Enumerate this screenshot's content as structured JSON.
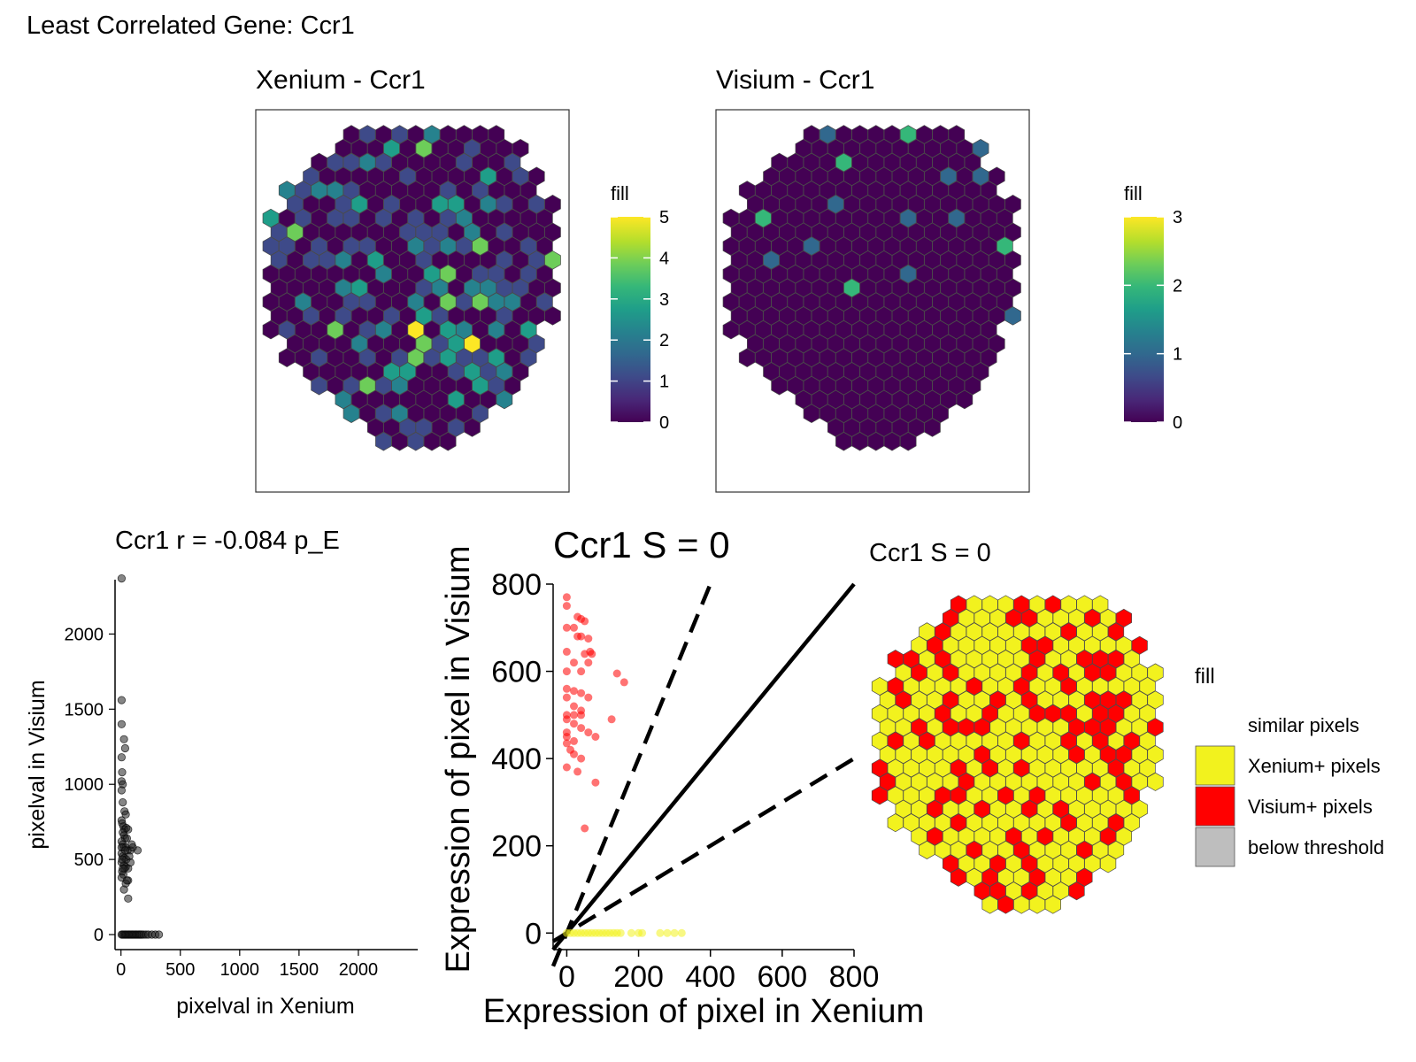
{
  "figure_title": "Least Correlated Gene: Ccr1",
  "colors": {
    "viridis": [
      "#440154",
      "#482878",
      "#3E4A89",
      "#31688E",
      "#26828E",
      "#1F9E89",
      "#35B779",
      "#6DCD59",
      "#B4DE2C",
      "#FDE725"
    ],
    "hex_stroke": "#4a4a4a",
    "scatter_point": "#222222",
    "visium_plus": "#FF0000",
    "xenium_plus": "#F2F21E",
    "below_threshold": "#BEBEBE",
    "line": "#000000"
  },
  "chart_data": [
    {
      "id": "xenium_map",
      "type": "heatmap",
      "title": "Xenium - Ccr1",
      "legend": {
        "title": "fill",
        "min": 0,
        "max": 5,
        "ticks": [
          "0",
          "1",
          "2",
          "3",
          "4",
          "5"
        ]
      },
      "hex_values": "0101020000000304001000011210000100110000010000301021221000001010001001301003302101030101101010120000014000000111020100011010110021214001010112030010000101400000002003401101000002300012022110000200110020414220100101001031000100001004012050320203000020004135000100100101413113010000033001312010141200003102000000300220120000100110101010011001000000100000001000000100000000000"
    },
    {
      "id": "visium_map",
      "type": "heatmap",
      "title": "Visium - Ccr1",
      "legend": {
        "title": "fill",
        "min": 0,
        "max": 3,
        "ticks": [
          "0",
          "1",
          "2",
          "3"
        ]
      },
      "hex_values": "0100002000000000000001000020000000000000000000101000000000000000000000010000000000000200000000100100000000000000000000000000100000000000200100000000000000000000000000100000000000002000000000000000000000000000000000000000000000100000000000000000000000000000000000000000000000000000000000000000000000000000000000000000000000000000000000000000000000000000000000000000000000"
    },
    {
      "id": "correlation_scatter",
      "type": "scatter",
      "title": "Ccr1  r =  -0.084  p_E",
      "xlabel": "pixelval in Xenium",
      "ylabel": "pixelval in Visium",
      "xlim": [
        -50,
        2500
      ],
      "ylim": [
        -100,
        2450
      ],
      "xticks": [
        0,
        500,
        1000,
        1500,
        2000
      ],
      "yticks": [
        0,
        500,
        1000,
        1500,
        2000
      ],
      "points_visium_only": [
        [
          5,
          2370
        ],
        [
          5,
          1560
        ],
        [
          5,
          1400
        ],
        [
          25,
          1300
        ],
        [
          35,
          1240
        ],
        [
          5,
          1180
        ],
        [
          10,
          1080
        ],
        [
          5,
          1020
        ],
        [
          15,
          1000
        ],
        [
          5,
          960
        ],
        [
          15,
          880
        ],
        [
          30,
          820
        ],
        [
          40,
          800
        ],
        [
          5,
          760
        ],
        [
          10,
          740
        ],
        [
          20,
          720
        ],
        [
          30,
          700
        ],
        [
          45,
          710
        ],
        [
          60,
          700
        ],
        [
          15,
          680
        ],
        [
          25,
          660
        ],
        [
          35,
          640
        ],
        [
          50,
          640
        ],
        [
          5,
          620
        ],
        [
          15,
          600
        ],
        [
          20,
          580
        ],
        [
          40,
          580
        ],
        [
          55,
          560
        ],
        [
          80,
          560
        ],
        [
          100,
          580
        ],
        [
          140,
          560
        ],
        [
          5,
          540
        ],
        [
          15,
          520
        ],
        [
          30,
          510
        ],
        [
          45,
          500
        ],
        [
          5,
          480
        ],
        [
          25,
          460
        ],
        [
          40,
          450
        ],
        [
          60,
          440
        ],
        [
          10,
          420
        ],
        [
          20,
          400
        ],
        [
          5,
          380
        ],
        [
          60,
          360
        ],
        [
          40,
          340
        ],
        [
          25,
          300
        ],
        [
          60,
          240
        ],
        [
          5,
          580
        ],
        [
          10,
          500
        ],
        [
          90,
          600
        ],
        [
          70,
          520
        ],
        [
          30,
          440
        ],
        [
          50,
          360
        ],
        [
          80,
          480
        ],
        [
          15,
          440
        ],
        [
          35,
          560
        ]
      ],
      "points_xenium_only": [
        [
          5,
          0
        ],
        [
          15,
          0
        ],
        [
          25,
          0
        ],
        [
          35,
          0
        ],
        [
          45,
          0
        ],
        [
          55,
          0
        ],
        [
          65,
          0
        ],
        [
          75,
          0
        ],
        [
          85,
          0
        ],
        [
          95,
          0
        ],
        [
          105,
          0
        ],
        [
          115,
          0
        ],
        [
          125,
          0
        ],
        [
          135,
          0
        ],
        [
          145,
          0
        ],
        [
          155,
          0
        ],
        [
          165,
          0
        ],
        [
          175,
          0
        ],
        [
          190,
          0
        ],
        [
          210,
          0
        ],
        [
          230,
          0
        ],
        [
          260,
          0
        ],
        [
          290,
          0
        ],
        [
          320,
          0
        ]
      ]
    },
    {
      "id": "threshold_scatter",
      "type": "scatter",
      "title": "Ccr1  S =  0",
      "xlabel": "Expression of pixel in Xenium",
      "ylabel": "Expression of pixel in Visium",
      "xlim": [
        -38,
        800
      ],
      "ylim": [
        -38,
        800
      ],
      "xticks": [
        0,
        200,
        400,
        600,
        800
      ],
      "yticks": [
        0,
        200,
        400,
        600,
        800
      ],
      "reference_lines": [
        {
          "style": "solid",
          "slope": 1
        },
        {
          "style": "dashed",
          "slope": 2
        },
        {
          "style": "dashed",
          "slope": 0.5
        }
      ],
      "points_visium_plus": [
        [
          0,
          770
        ],
        [
          0,
          750
        ],
        [
          30,
          725
        ],
        [
          40,
          720
        ],
        [
          50,
          715
        ],
        [
          0,
          700
        ],
        [
          20,
          700
        ],
        [
          30,
          680
        ],
        [
          40,
          680
        ],
        [
          60,
          675
        ],
        [
          0,
          645
        ],
        [
          50,
          640
        ],
        [
          65,
          645
        ],
        [
          70,
          640
        ],
        [
          20,
          620
        ],
        [
          40,
          600
        ],
        [
          60,
          620
        ],
        [
          0,
          600
        ],
        [
          140,
          595
        ],
        [
          160,
          575
        ],
        [
          0,
          560
        ],
        [
          20,
          555
        ],
        [
          40,
          550
        ],
        [
          60,
          540
        ],
        [
          0,
          540
        ],
        [
          20,
          520
        ],
        [
          40,
          510
        ],
        [
          0,
          500
        ],
        [
          20,
          500
        ],
        [
          40,
          500
        ],
        [
          0,
          490
        ],
        [
          125,
          490
        ],
        [
          20,
          480
        ],
        [
          40,
          470
        ],
        [
          0,
          460
        ],
        [
          60,
          460
        ],
        [
          0,
          450
        ],
        [
          20,
          440
        ],
        [
          80,
          450
        ],
        [
          0,
          435
        ],
        [
          10,
          420
        ],
        [
          20,
          410
        ],
        [
          40,
          400
        ],
        [
          0,
          380
        ],
        [
          30,
          370
        ],
        [
          80,
          345
        ],
        [
          50,
          240
        ]
      ],
      "points_xenium_plus": [
        [
          0,
          0
        ],
        [
          10,
          0
        ],
        [
          20,
          0
        ],
        [
          30,
          0
        ],
        [
          40,
          0
        ],
        [
          50,
          0
        ],
        [
          60,
          0
        ],
        [
          70,
          0
        ],
        [
          80,
          0
        ],
        [
          90,
          0
        ],
        [
          100,
          0
        ],
        [
          110,
          0
        ],
        [
          120,
          0
        ],
        [
          130,
          0
        ],
        [
          140,
          0
        ],
        [
          150,
          0
        ],
        [
          180,
          0
        ],
        [
          200,
          0
        ],
        [
          210,
          0
        ],
        [
          260,
          0
        ],
        [
          280,
          0
        ],
        [
          300,
          0
        ],
        [
          320,
          0
        ]
      ]
    },
    {
      "id": "category_map",
      "type": "heatmap",
      "title": "Ccr1 S = 0",
      "hex_categories": "211121211121112211121212111111121121211111221111122212111112112221121211112121221111211112112112111111211211212111222111111211211222122111121222111112221121212111112112121211111112111112122112111121212111112112111121111111212112111221121211111211211211212111111111211111121121121111212111211112112111211211212111112121121122212112121112211121111211111121111212121121121111112211",
      "legend": {
        "title": "fill",
        "entries": [
          {
            "label": "similar pixels",
            "swatch": null
          },
          {
            "label": "Xenium+ pixels",
            "swatch": "#F2F21E"
          },
          {
            "label": "Visium+ pixels",
            "swatch": "#FF0000"
          },
          {
            "label": "below threshold",
            "swatch": "#BEBEBE"
          }
        ]
      }
    }
  ]
}
